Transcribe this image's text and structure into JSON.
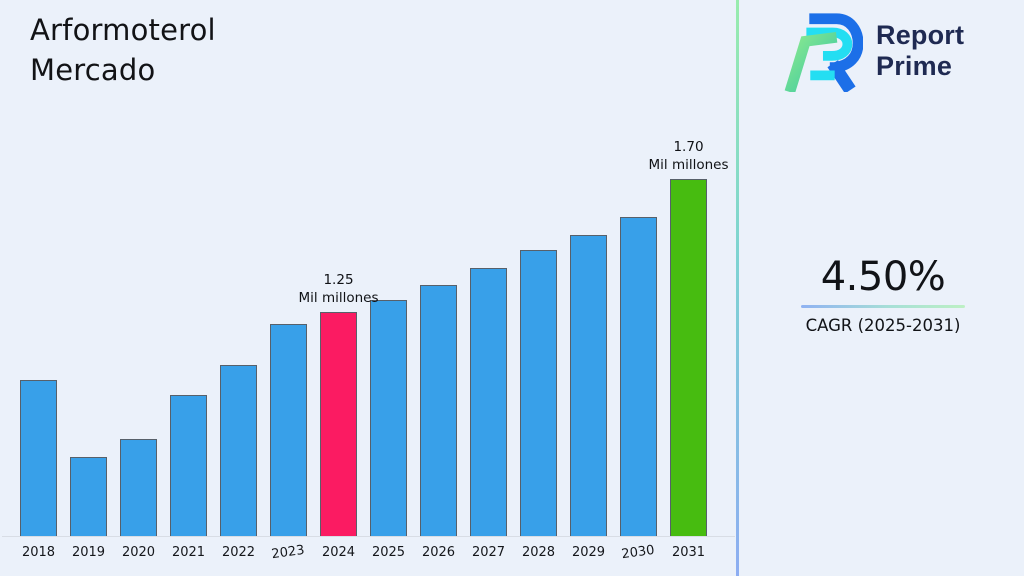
{
  "title": {
    "line1": "Arformoterol",
    "line2": "Mercado"
  },
  "logo": {
    "line1": "Report",
    "line2": "Prime"
  },
  "cagr": {
    "value": "4.50%",
    "label": "CAGR (2025-2031)"
  },
  "chart_data": {
    "type": "bar",
    "title": "Arformoterol Mercado",
    "xlabel": "",
    "ylabel": "",
    "unit": "Mil millones",
    "y_axis_visible": false,
    "grid": false,
    "legend": false,
    "categories": [
      "2018",
      "2019",
      "2020",
      "2021",
      "2022",
      "2023",
      "2024",
      "2025",
      "2026",
      "2027",
      "2028",
      "2029",
      "2030",
      "2031"
    ],
    "values": [
      1.02,
      0.76,
      0.82,
      0.97,
      1.07,
      1.21,
      1.25,
      1.29,
      1.34,
      1.4,
      1.46,
      1.51,
      1.57,
      1.7
    ],
    "colors": {
      "default": "#38A0E9",
      "2024": "#FB1B62",
      "2031": "#47BC10"
    },
    "bar_border_color": "#57606A",
    "annotations": [
      {
        "category": "2024",
        "line1": "1.25",
        "line2": "Mil millones"
      },
      {
        "category": "2031",
        "line1": "1.70",
        "line2": "Mil millones"
      }
    ],
    "accent_colors": {
      "background": "#EBF1FA",
      "divider_top": "#98ECAD",
      "divider_bottom": "#8DADF2",
      "logo_navy": "#1F2A52",
      "logo_blue": "#1C6FE8",
      "logo_cyan": "#24DEF2",
      "logo_green": "#7BE77E"
    }
  }
}
